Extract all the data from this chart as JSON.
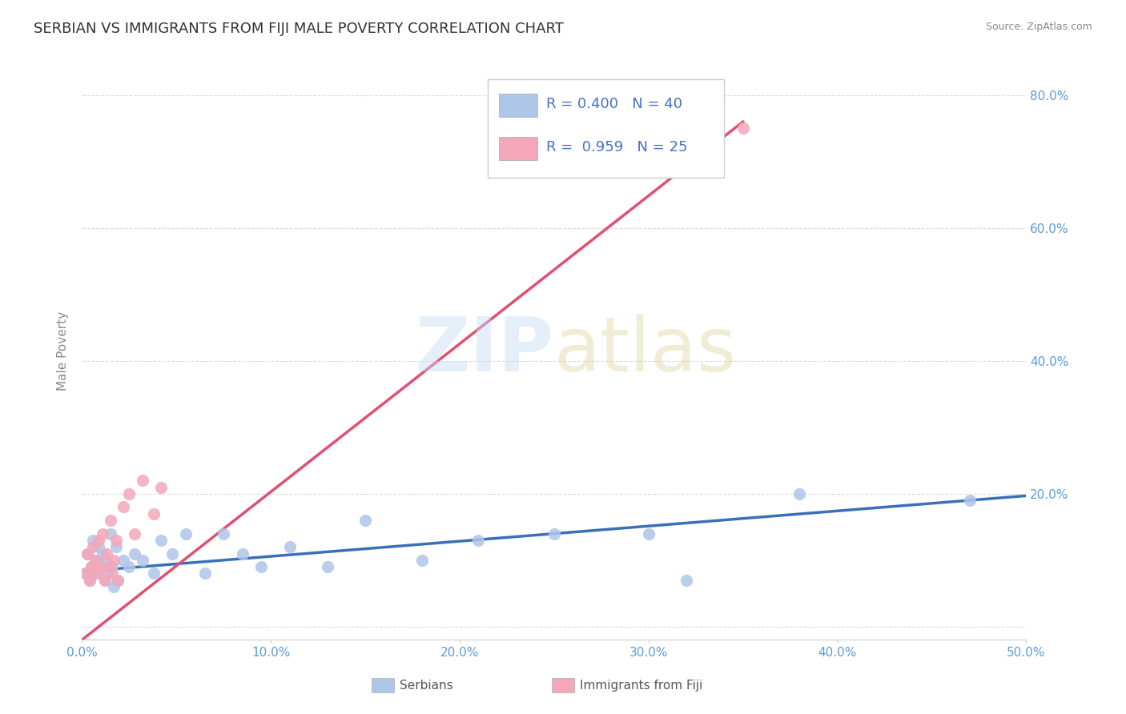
{
  "title": "SERBIAN VS IMMIGRANTS FROM FIJI MALE POVERTY CORRELATION CHART",
  "source": "Source: ZipAtlas.com",
  "ylabel": "Male Poverty",
  "xlim": [
    0.0,
    0.5
  ],
  "ylim": [
    -0.02,
    0.85
  ],
  "x_ticks": [
    0.0,
    0.1,
    0.2,
    0.3,
    0.4,
    0.5
  ],
  "y_ticks": [
    0.0,
    0.2,
    0.4,
    0.6,
    0.8
  ],
  "x_tick_labels": [
    "0.0%",
    "10.0%",
    "20.0%",
    "30.0%",
    "40.0%",
    "50.0%"
  ],
  "y_tick_labels": [
    "",
    "20.0%",
    "40.0%",
    "60.0%",
    "80.0%"
  ],
  "serbian_color": "#aec6e8",
  "fiji_color": "#f4a7b9",
  "serbian_line_color": "#3a6fba",
  "fiji_line_color": "#e05070",
  "r_serbian": 0.4,
  "n_serbian": 40,
  "r_fiji": 0.959,
  "n_fiji": 25,
  "legend_serbian": "Serbians",
  "legend_fiji": "Immigrants from Fiji",
  "background_color": "#ffffff",
  "grid_color": "#cccccc",
  "title_color": "#333333",
  "title_fontsize": 13,
  "axis_label_color": "#888888",
  "tick_label_color": "#5b9bd5",
  "legend_r_color": "#4472c4",
  "right_axis_tick_color": "#5b9bd5",
  "serbian_x": [
    0.002,
    0.003,
    0.004,
    0.005,
    0.006,
    0.007,
    0.008,
    0.009,
    0.01,
    0.011,
    0.012,
    0.013,
    0.014,
    0.015,
    0.016,
    0.017,
    0.018,
    0.019,
    0.022,
    0.025,
    0.028,
    0.032,
    0.038,
    0.042,
    0.048,
    0.055,
    0.065,
    0.075,
    0.085,
    0.095,
    0.11,
    0.13,
    0.15,
    0.18,
    0.21,
    0.25,
    0.3,
    0.32,
    0.38,
    0.47
  ],
  "serbian_y": [
    0.08,
    0.11,
    0.07,
    0.09,
    0.13,
    0.1,
    0.08,
    0.12,
    0.09,
    0.11,
    0.07,
    0.1,
    0.08,
    0.14,
    0.09,
    0.06,
    0.12,
    0.07,
    0.1,
    0.09,
    0.11,
    0.1,
    0.08,
    0.13,
    0.11,
    0.14,
    0.08,
    0.14,
    0.11,
    0.09,
    0.12,
    0.09,
    0.16,
    0.1,
    0.13,
    0.14,
    0.14,
    0.07,
    0.2,
    0.19
  ],
  "fiji_x": [
    0.002,
    0.003,
    0.004,
    0.005,
    0.006,
    0.007,
    0.008,
    0.009,
    0.01,
    0.011,
    0.012,
    0.013,
    0.014,
    0.015,
    0.016,
    0.017,
    0.018,
    0.019,
    0.022,
    0.025,
    0.028,
    0.032,
    0.038,
    0.042,
    0.35
  ],
  "fiji_y": [
    0.08,
    0.11,
    0.07,
    0.09,
    0.12,
    0.1,
    0.08,
    0.13,
    0.09,
    0.14,
    0.07,
    0.11,
    0.09,
    0.16,
    0.08,
    0.1,
    0.13,
    0.07,
    0.18,
    0.2,
    0.14,
    0.22,
    0.17,
    0.21,
    0.75
  ],
  "srb_trend_x": [
    0.0,
    0.5
  ],
  "srb_trend_y": [
    0.083,
    0.197
  ],
  "fiji_trend_x": [
    0.0,
    0.35
  ],
  "fiji_trend_y": [
    -0.02,
    0.76
  ]
}
